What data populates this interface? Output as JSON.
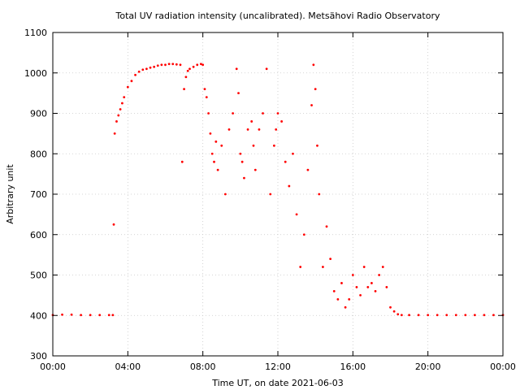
{
  "chart_data": {
    "type": "scatter",
    "title": "Total UV radiation intensity (uncalibrated). Metsähovi Radio Observatory",
    "xlabel": "Time UT, on date 2021-06-03",
    "ylabel": "Arbitrary unit",
    "xlim": [
      0,
      24
    ],
    "ylim": [
      300,
      1100
    ],
    "x_ticks": [
      0,
      4,
      8,
      12,
      16,
      20,
      24
    ],
    "x_tick_labels": [
      "00:00",
      "04:00",
      "08:00",
      "12:00",
      "16:00",
      "20:00",
      "00:00"
    ],
    "y_ticks": [
      300,
      400,
      500,
      600,
      700,
      800,
      900,
      1000,
      1100
    ],
    "y_tick_labels": [
      "300",
      "400",
      "500",
      "600",
      "700",
      "800",
      "900",
      "1000",
      "1100"
    ],
    "grid": true,
    "color": "#ff0000",
    "series": [
      {
        "x": [
          0.0,
          0.5,
          1.0,
          1.5,
          2.0,
          2.5,
          3.0,
          3.2,
          3.25,
          3.3,
          3.4,
          3.5,
          3.6,
          3.7,
          3.8,
          4.0,
          4.2,
          4.4,
          4.6,
          4.8,
          5.0,
          5.2,
          5.4,
          5.6,
          5.8,
          6.0,
          6.2,
          6.4,
          6.6,
          6.8,
          6.9,
          7.0,
          7.1,
          7.2,
          7.3,
          7.5,
          7.7,
          7.9,
          8.0,
          8.1,
          8.2,
          8.3,
          8.4,
          8.5,
          8.6,
          8.7,
          8.8,
          9.0,
          9.2,
          9.4,
          9.6,
          9.8,
          9.9,
          10.0,
          10.1,
          10.2,
          10.4,
          10.6,
          10.7,
          10.8,
          11.0,
          11.2,
          11.4,
          11.6,
          11.8,
          11.9,
          12.0,
          12.2,
          12.4,
          12.6,
          12.8,
          13.0,
          13.2,
          13.4,
          13.6,
          13.8,
          13.9,
          14.0,
          14.1,
          14.2,
          14.4,
          14.6,
          14.8,
          15.0,
          15.2,
          15.4,
          15.6,
          15.8,
          16.0,
          16.2,
          16.4,
          16.6,
          16.8,
          17.0,
          17.2,
          17.4,
          17.6,
          17.8,
          18.0,
          18.2,
          18.4,
          18.6,
          19.0,
          19.5,
          20.0,
          20.5,
          21.0,
          21.5,
          22.0,
          22.5,
          23.0,
          23.5,
          24.0
        ],
        "y": [
          401,
          402,
          402,
          401,
          401,
          401,
          401,
          401,
          625,
          850,
          880,
          895,
          910,
          925,
          940,
          965,
          980,
          995,
          1003,
          1008,
          1010,
          1013,
          1015,
          1018,
          1020,
          1020,
          1022,
          1022,
          1021,
          1020,
          780,
          960,
          990,
          1005,
          1010,
          1015,
          1020,
          1022,
          1020,
          960,
          940,
          900,
          850,
          800,
          780,
          830,
          760,
          820,
          700,
          860,
          900,
          1010,
          950,
          800,
          780,
          740,
          860,
          880,
          820,
          760,
          860,
          900,
          1010,
          700,
          820,
          860,
          900,
          880,
          780,
          720,
          800,
          650,
          520,
          600,
          760,
          920,
          1020,
          960,
          820,
          700,
          520,
          620,
          540,
          460,
          440,
          480,
          420,
          440,
          500,
          470,
          450,
          520,
          470,
          480,
          460,
          500,
          520,
          470,
          420,
          410,
          403,
          401,
          401,
          401,
          401,
          401,
          401,
          401,
          401,
          401,
          401,
          401,
          401
        ]
      }
    ]
  }
}
